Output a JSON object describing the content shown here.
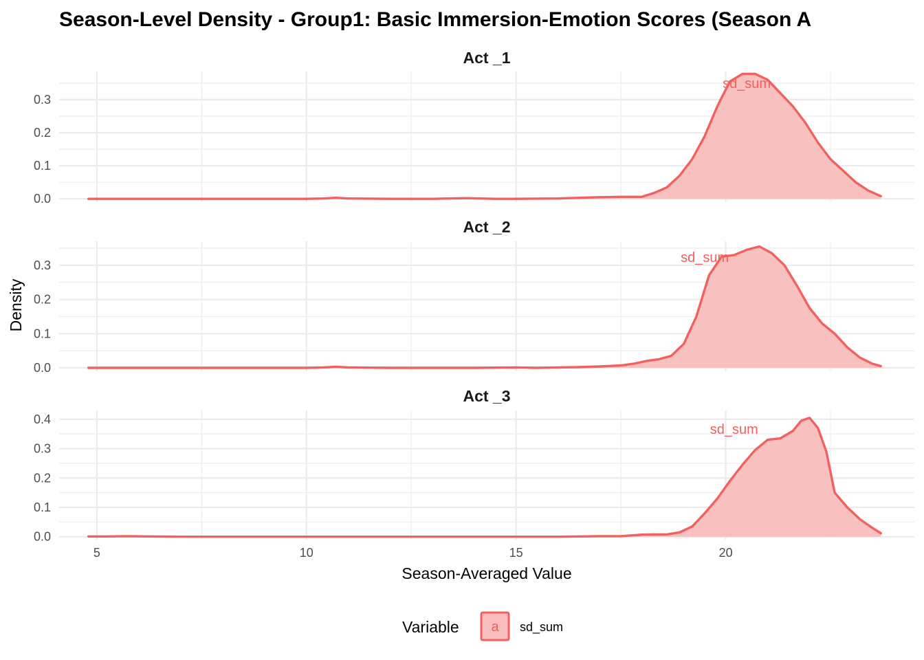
{
  "chart_data": {
    "type": "area",
    "title": "Season-Level Density - Group1: Basic Immersion-Emotion Scores (Season A",
    "xlabel": "Season-Averaged Value",
    "ylabel": "Density",
    "xlim": [
      4.1,
      24.5
    ],
    "x_ticks": [
      5,
      10,
      15,
      20
    ],
    "x_tick_labels": [
      "5",
      "10",
      "15",
      "20"
    ],
    "grid": true,
    "legend": {
      "position": "bottom",
      "title": "Variable",
      "key_glyph": "a",
      "entries": [
        "sd_sum"
      ]
    },
    "colors": {
      "line": "#F0615F",
      "fill": "#F8BDBC",
      "grid": "#EBEBEB"
    },
    "panels": [
      {
        "strip": "Act _1",
        "ylim": [
          -0.01,
          0.385
        ],
        "y_ticks": [
          0,
          0.1,
          0.2,
          0.3
        ],
        "y_tick_labels": [
          "0.0",
          "0.1",
          "0.2",
          "0.3"
        ],
        "annotation": {
          "text": "sd_sum",
          "x": 20.5,
          "y": 0.335
        },
        "series": [
          {
            "name": "sd_sum",
            "x": [
              4.8,
              6.0,
              8.0,
              10.0,
              10.4,
              10.7,
              11.0,
              12.0,
              13.0,
              13.8,
              14.5,
              15.0,
              16.0,
              16.5,
              17.0,
              17.5,
              18.0,
              18.3,
              18.6,
              18.9,
              19.2,
              19.5,
              19.8,
              20.1,
              20.4,
              20.7,
              21.0,
              21.3,
              21.6,
              21.9,
              22.2,
              22.5,
              22.8,
              23.1,
              23.4,
              23.7
            ],
            "values": [
              0.0,
              0.0,
              0.0,
              0.0,
              0.001,
              0.003,
              0.001,
              0.0,
              0.0,
              0.002,
              0.0,
              0.0,
              0.001,
              0.003,
              0.005,
              0.006,
              0.006,
              0.018,
              0.035,
              0.07,
              0.12,
              0.19,
              0.28,
              0.355,
              0.378,
              0.378,
              0.36,
              0.32,
              0.28,
              0.23,
              0.17,
              0.12,
              0.085,
              0.05,
              0.025,
              0.008
            ]
          }
        ]
      },
      {
        "strip": "Act _2",
        "ylim": [
          -0.01,
          0.37
        ],
        "y_ticks": [
          0,
          0.1,
          0.2,
          0.3
        ],
        "y_tick_labels": [
          "0.0",
          "0.1",
          "0.2",
          "0.3"
        ],
        "annotation": {
          "text": "sd_sum",
          "x": 19.5,
          "y": 0.31
        },
        "series": [
          {
            "name": "sd_sum",
            "x": [
              4.8,
              6.0,
              8.0,
              10.0,
              10.4,
              10.7,
              11.0,
              12.0,
              13.0,
              14.0,
              15.0,
              15.5,
              16.0,
              16.5,
              17.0,
              17.5,
              17.8,
              18.1,
              18.4,
              18.7,
              19.0,
              19.3,
              19.6,
              19.9,
              20.2,
              20.5,
              20.8,
              21.1,
              21.4,
              21.7,
              22.0,
              22.3,
              22.6,
              22.9,
              23.2,
              23.5,
              23.7
            ],
            "values": [
              0.0,
              0.0,
              0.0,
              0.0,
              0.001,
              0.003,
              0.001,
              0.0,
              0.0,
              0.0,
              0.001,
              0.0,
              0.001,
              0.002,
              0.004,
              0.007,
              0.012,
              0.02,
              0.025,
              0.035,
              0.07,
              0.15,
              0.27,
              0.325,
              0.33,
              0.345,
              0.355,
              0.335,
              0.3,
              0.24,
              0.175,
              0.13,
              0.1,
              0.06,
              0.03,
              0.012,
              0.005
            ]
          }
        ]
      },
      {
        "strip": "Act _3",
        "ylim": [
          -0.01,
          0.43
        ],
        "y_ticks": [
          0,
          0.1,
          0.2,
          0.3,
          0.4
        ],
        "y_tick_labels": [
          "0.0",
          "0.1",
          "0.2",
          "0.3",
          "0.4"
        ],
        "annotation": {
          "text": "sd_sum",
          "x": 20.2,
          "y": 0.35
        },
        "series": [
          {
            "name": "sd_sum",
            "x": [
              4.8,
              5.2,
              5.7,
              6.3,
              7.0,
              8.0,
              10.0,
              12.0,
              14.0,
              15.0,
              16.0,
              16.5,
              17.0,
              17.5,
              18.0,
              18.3,
              18.6,
              18.9,
              19.2,
              19.5,
              19.8,
              20.1,
              20.4,
              20.7,
              21.0,
              21.3,
              21.6,
              21.8,
              22.0,
              22.2,
              22.4,
              22.6,
              22.9,
              23.2,
              23.5,
              23.7
            ],
            "values": [
              0.001,
              0.001,
              0.002,
              0.001,
              0.0,
              0.0,
              0.0,
              0.0,
              0.0,
              0.0,
              0.0,
              0.001,
              0.002,
              0.002,
              0.007,
              0.008,
              0.008,
              0.015,
              0.035,
              0.08,
              0.13,
              0.19,
              0.245,
              0.295,
              0.33,
              0.335,
              0.36,
              0.395,
              0.405,
              0.37,
              0.29,
              0.15,
              0.1,
              0.06,
              0.03,
              0.012
            ]
          }
        ]
      }
    ]
  }
}
